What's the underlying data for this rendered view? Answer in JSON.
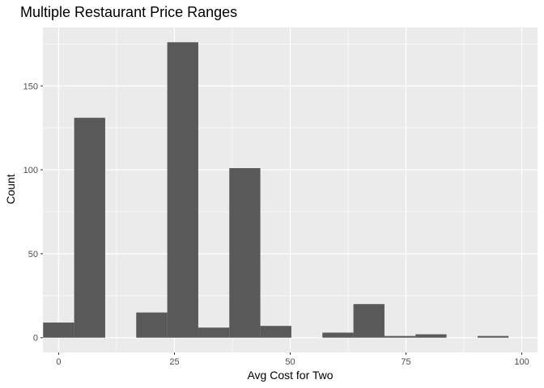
{
  "chart_data": {
    "type": "bar",
    "title": "Multiple Restaurant Price Ranges",
    "xlabel": "Avg Cost for Two",
    "ylabel": "Count",
    "xlim": [
      -3.4,
      103.4
    ],
    "ylim": [
      -8.8,
      184.8
    ],
    "x_ticks": [
      0,
      25,
      50,
      75,
      100
    ],
    "y_ticks": [
      0,
      50,
      100,
      150
    ],
    "x_tick_labels": [
      "0",
      "25",
      "50",
      "75",
      "100"
    ],
    "y_tick_labels": [
      "0",
      "50",
      "100",
      "150"
    ],
    "bin_width": 6.7,
    "bins": [
      {
        "x": 0.0,
        "count": 9
      },
      {
        "x": 6.7,
        "count": 131
      },
      {
        "x": 13.4,
        "count": 0
      },
      {
        "x": 20.1,
        "count": 15
      },
      {
        "x": 26.8,
        "count": 176
      },
      {
        "x": 33.5,
        "count": 6
      },
      {
        "x": 40.2,
        "count": 101
      },
      {
        "x": 46.9,
        "count": 7
      },
      {
        "x": 53.6,
        "count": 0
      },
      {
        "x": 60.3,
        "count": 3
      },
      {
        "x": 67.0,
        "count": 20
      },
      {
        "x": 73.7,
        "count": 1
      },
      {
        "x": 80.4,
        "count": 2
      },
      {
        "x": 87.1,
        "count": 0
      },
      {
        "x": 93.8,
        "count": 1
      }
    ],
    "grid": true,
    "colors": {
      "panel_background": "#ebebeb",
      "grid_major": "#ffffff",
      "bar_fill": "#595959",
      "tick_text": "#4d4d4d"
    }
  }
}
